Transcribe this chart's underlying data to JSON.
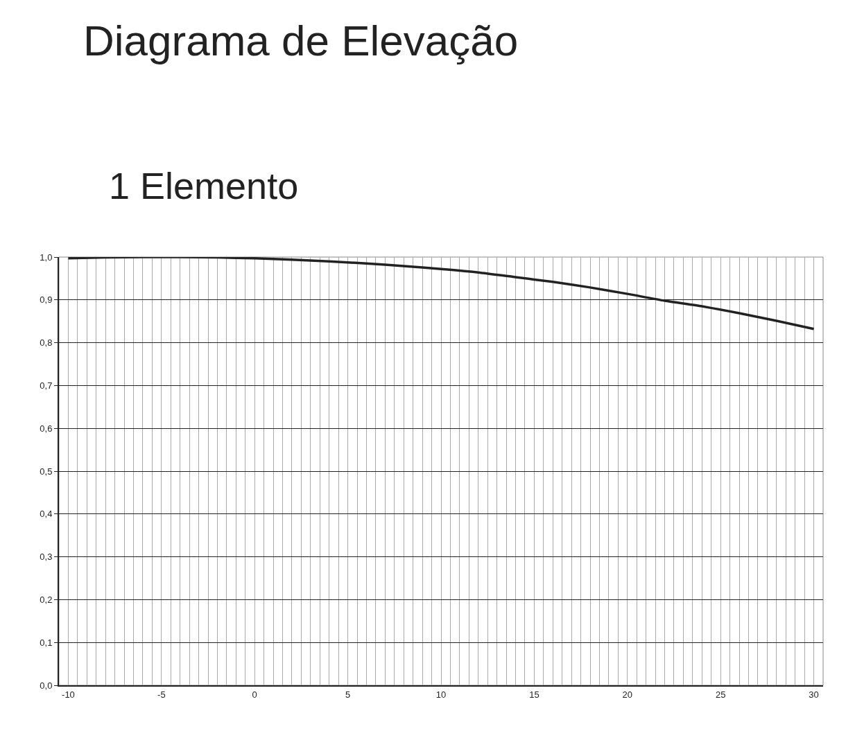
{
  "chart_data": {
    "type": "line",
    "title": "Diagrama de Elevação",
    "subtitle": "1 Elemento",
    "x": [
      -10,
      -8,
      -6,
      -4,
      -2,
      0,
      2,
      4,
      6,
      8,
      10,
      12,
      14,
      16,
      18,
      20,
      22,
      24,
      26,
      28,
      30
    ],
    "series": [
      {
        "color": "#222222",
        "values": [
          0.997,
          0.999,
          1.0,
          1.0,
          0.999,
          0.997,
          0.994,
          0.99,
          0.985,
          0.979,
          0.972,
          0.964,
          0.953,
          0.942,
          0.929,
          0.914,
          0.898,
          0.885,
          0.869,
          0.851,
          0.832
        ]
      }
    ],
    "xlim": [
      -10.5,
      30.5
    ],
    "xticks": [
      {
        "value": -10.5,
        "label": null
      },
      {
        "value": -10,
        "label": "-10"
      },
      {
        "value": -9.5,
        "label": null
      },
      {
        "value": -9,
        "label": null
      },
      {
        "value": -8.5,
        "label": null
      },
      {
        "value": -8,
        "label": null
      },
      {
        "value": -7.5,
        "label": null
      },
      {
        "value": -7,
        "label": null
      },
      {
        "value": -6.5,
        "label": null
      },
      {
        "value": -6,
        "label": null
      },
      {
        "value": -5.5,
        "label": null
      },
      {
        "value": -5,
        "label": "-5"
      },
      {
        "value": -4.5,
        "label": null
      },
      {
        "value": -4,
        "label": null
      },
      {
        "value": -3.5,
        "label": null
      },
      {
        "value": -3,
        "label": null
      },
      {
        "value": -2.5,
        "label": null
      },
      {
        "value": -2,
        "label": null
      },
      {
        "value": -1.5,
        "label": null
      },
      {
        "value": -1,
        "label": null
      },
      {
        "value": -0.5,
        "label": null
      },
      0,
      {
        "value": 0.5,
        "label": null
      },
      {
        "value": 1,
        "label": null
      },
      {
        "value": 1.5,
        "label": null
      },
      {
        "value": 2,
        "label": null
      },
      {
        "value": 2.5,
        "label": null
      },
      {
        "value": 3,
        "label": null
      },
      {
        "value": 3.5,
        "label": null
      },
      {
        "value": 4,
        "label": null
      },
      {
        "value": 4.5,
        "label": null
      },
      5,
      {
        "value": 5.5,
        "label": null
      },
      {
        "value": 6,
        "label": null
      },
      {
        "value": 6.5,
        "label": null
      },
      {
        "value": 7,
        "label": null
      },
      {
        "value": 7.5,
        "label": null
      },
      {
        "value": 8,
        "label": null
      },
      {
        "value": 8.5,
        "label": null
      },
      {
        "value": 9,
        "label": null
      },
      {
        "value": 9.5,
        "label": null
      },
      10,
      {
        "value": 10.5,
        "label": null
      },
      {
        "value": 11,
        "label": null
      },
      {
        "value": 11.5,
        "label": null
      },
      {
        "value": 12,
        "label": null
      },
      {
        "value": 12.5,
        "label": null
      },
      {
        "value": 13,
        "label": null
      },
      {
        "value": 13.5,
        "label": null
      },
      {
        "value": 14,
        "label": null
      },
      {
        "value": 14.5,
        "label": null
      },
      15,
      {
        "value": 15.5,
        "label": null
      },
      {
        "value": 16,
        "label": null
      },
      {
        "value": 16.5,
        "label": null
      },
      {
        "value": 17,
        "label": null
      },
      {
        "value": 17.5,
        "label": null
      },
      {
        "value": 18,
        "label": null
      },
      {
        "value": 18.5,
        "label": null
      },
      {
        "value": 19,
        "label": null
      },
      {
        "value": 19.5,
        "label": null
      },
      20,
      {
        "value": 20.5,
        "label": null
      },
      {
        "value": 21,
        "label": null
      },
      {
        "value": 21.5,
        "label": null
      },
      {
        "value": 22,
        "label": null
      },
      {
        "value": 22.5,
        "label": null
      },
      {
        "value": 23,
        "label": null
      },
      {
        "value": 23.5,
        "label": null
      },
      {
        "value": 24,
        "label": null
      },
      {
        "value": 24.5,
        "label": null
      },
      25,
      {
        "value": 25.5,
        "label": null
      },
      {
        "value": 26,
        "label": null
      },
      {
        "value": 26.5,
        "label": null
      },
      {
        "value": 27,
        "label": null
      },
      {
        "value": 27.5,
        "label": null
      },
      {
        "value": 28,
        "label": null
      },
      {
        "value": 28.5,
        "label": null
      },
      {
        "value": 29,
        "label": null
      },
      {
        "value": 29.5,
        "label": null
      },
      30,
      {
        "value": 30.5,
        "label": null
      }
    ],
    "ylim": [
      0,
      1
    ],
    "yticks": [
      {
        "value": 0,
        "label": "0,0"
      },
      {
        "value": 0.1,
        "label": "0,1"
      },
      {
        "value": 0.2,
        "label": "0,2"
      },
      {
        "value": 0.3,
        "label": "0,3"
      },
      {
        "value": 0.4,
        "label": "0,4"
      },
      {
        "value": 0.5,
        "label": "0,5"
      },
      {
        "value": 0.6,
        "label": "0,6"
      },
      {
        "value": 0.7,
        "label": "0,7"
      },
      {
        "value": 0.8,
        "label": "0,8"
      },
      {
        "value": 0.9,
        "label": "0,9"
      },
      {
        "value": 1,
        "label": "1,0"
      }
    ],
    "grid": true,
    "marker": "none",
    "line_style": "solid"
  }
}
